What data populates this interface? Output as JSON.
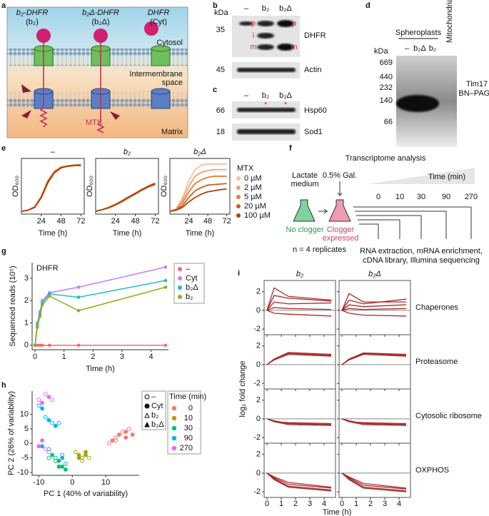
{
  "panel_a": {
    "label": "a",
    "constructs": [
      {
        "name": "b₂-DHFR",
        "short": "(b₂)"
      },
      {
        "name": "b₂Δ-DHFR",
        "short": "(b₂Δ)"
      },
      {
        "name": "DHFR",
        "short": "(Cyt)"
      }
    ],
    "cytosol": "Cytosol",
    "ims": [
      "Intermembrane",
      "space"
    ],
    "matrix": "Matrix",
    "mts": "MTS"
  },
  "panel_b": {
    "label": "b",
    "unit": "kDa",
    "lanes": [
      "–",
      "b₂",
      "b₂Δ"
    ],
    "blots": [
      {
        "marker": 35,
        "name": "DHFR"
      },
      {
        "marker": 45,
        "name": "Actin"
      }
    ],
    "band_labels": [
      "p",
      "i",
      "m",
      "p",
      "m"
    ]
  },
  "panel_c": {
    "label": "c",
    "lanes": [
      "–",
      "b₂",
      "b₂Δ"
    ],
    "blots": [
      {
        "marker": 66,
        "name": "Hsp60"
      },
      {
        "marker": 18,
        "name": "Sod1"
      }
    ]
  },
  "panel_d": {
    "label": "d",
    "group": "Spheroplasts",
    "lanes": [
      "–",
      "b₂Δ",
      "b₂",
      "Mitochondria"
    ],
    "unit": "kDa",
    "markers": [
      669,
      440,
      232,
      140,
      66
    ],
    "caption": [
      "Tim17",
      "BN–PAGE"
    ]
  },
  "panel_e": {
    "label": "e"
  },
  "panel_f": {
    "label": "f",
    "title": "Transcriptome analysis",
    "medium": [
      "Lactate",
      "medium"
    ],
    "inducer": "0.5% Gal.",
    "time_title": "Time (min)",
    "timepoints": [
      0,
      10,
      30,
      90,
      270
    ],
    "flasks": [
      "No clogger",
      [
        "Clogger",
        "expressed"
      ]
    ],
    "replicates": "n = 4 replicates",
    "steps": [
      "RNA extraction, mRNA enrichment,",
      "cDNA library, Illumina sequencing"
    ]
  },
  "panel_g": {
    "label": "g"
  },
  "panel_h": {
    "label": "h"
  },
  "panel_i": {
    "label": "i"
  },
  "chart_data": [
    {
      "type": "line",
      "title": "–",
      "x_label": "Time (h)",
      "y_label": "OD₆₀₀",
      "xlim": [
        0,
        76
      ],
      "xticks": [
        24,
        48,
        72
      ],
      "ylim": [
        0,
        1
      ],
      "x": [
        0,
        8,
        16,
        24,
        32,
        40,
        48,
        56,
        64,
        72
      ],
      "series": [
        {
          "color": "#f4c3a0",
          "values": [
            0.05,
            0.07,
            0.12,
            0.3,
            0.58,
            0.76,
            0.84,
            0.87,
            0.88,
            0.88
          ]
        },
        {
          "color": "#eea16e",
          "values": [
            0.05,
            0.07,
            0.13,
            0.32,
            0.6,
            0.77,
            0.85,
            0.87,
            0.88,
            0.89
          ]
        },
        {
          "color": "#e27f3f",
          "values": [
            0.05,
            0.07,
            0.12,
            0.29,
            0.56,
            0.74,
            0.83,
            0.86,
            0.87,
            0.88
          ]
        },
        {
          "color": "#c8601f",
          "values": [
            0.05,
            0.07,
            0.13,
            0.31,
            0.59,
            0.76,
            0.84,
            0.86,
            0.87,
            0.87
          ]
        },
        {
          "color": "#a84510",
          "values": [
            0.05,
            0.07,
            0.12,
            0.3,
            0.57,
            0.75,
            0.83,
            0.86,
            0.88,
            0.88
          ]
        }
      ]
    },
    {
      "type": "line",
      "title": "b₂",
      "x_label": "Time (h)",
      "y_label": "OD₆₀₀",
      "xlim": [
        0,
        76
      ],
      "xticks": [
        24,
        48,
        72
      ],
      "ylim": [
        0,
        1
      ],
      "x": [
        0,
        8,
        16,
        24,
        32,
        40,
        48,
        56,
        64,
        72
      ],
      "series": [
        {
          "color": "#f4c3a0",
          "values": [
            0.05,
            0.08,
            0.12,
            0.17,
            0.23,
            0.3,
            0.37,
            0.44,
            0.5,
            0.55
          ]
        },
        {
          "color": "#eea16e",
          "values": [
            0.05,
            0.08,
            0.12,
            0.18,
            0.24,
            0.31,
            0.38,
            0.45,
            0.51,
            0.56
          ]
        },
        {
          "color": "#e27f3f",
          "values": [
            0.05,
            0.08,
            0.11,
            0.16,
            0.22,
            0.29,
            0.36,
            0.43,
            0.49,
            0.54
          ]
        },
        {
          "color": "#c8601f",
          "values": [
            0.05,
            0.08,
            0.12,
            0.17,
            0.23,
            0.3,
            0.36,
            0.43,
            0.49,
            0.53
          ]
        },
        {
          "color": "#a84510",
          "values": [
            0.05,
            0.08,
            0.12,
            0.17,
            0.24,
            0.31,
            0.37,
            0.44,
            0.5,
            0.55
          ]
        }
      ]
    },
    {
      "type": "line",
      "title": "b₂Δ",
      "x_label": "Time (h)",
      "y_label": "OD₆₀₀",
      "xlim": [
        0,
        76
      ],
      "xticks": [
        24,
        48,
        72
      ],
      "ylim": [
        0,
        1
      ],
      "legend_title": "MTX",
      "x": [
        0,
        8,
        16,
        24,
        32,
        40,
        48,
        56,
        64,
        72
      ],
      "series": [
        {
          "name": "0 µM",
          "color": "#f4c3a0",
          "values": [
            0.05,
            0.1,
            0.3,
            0.6,
            0.8,
            0.88,
            0.9,
            0.9,
            0.9,
            0.9
          ]
        },
        {
          "name": "2 µM",
          "color": "#eea16e",
          "values": [
            0.05,
            0.09,
            0.25,
            0.5,
            0.68,
            0.75,
            0.78,
            0.8,
            0.8,
            0.8
          ]
        },
        {
          "name": "5 µM",
          "color": "#e27f3f",
          "values": [
            0.05,
            0.08,
            0.2,
            0.4,
            0.55,
            0.62,
            0.66,
            0.68,
            0.68,
            0.68
          ]
        },
        {
          "name": "20 µM",
          "color": "#c8601f",
          "values": [
            0.05,
            0.07,
            0.15,
            0.3,
            0.42,
            0.48,
            0.52,
            0.53,
            0.54,
            0.55
          ]
        },
        {
          "name": "100 µM",
          "color": "#a84510",
          "values": [
            0.05,
            0.07,
            0.12,
            0.22,
            0.3,
            0.36,
            0.4,
            0.42,
            0.44,
            0.45
          ]
        }
      ]
    },
    {
      "type": "line",
      "title": "DHFR",
      "x_label": "Time (h)",
      "y_label": "Sequenced reads (10⁵)",
      "xlim": [
        -0.1,
        4.6
      ],
      "xticks": [
        0,
        1,
        2,
        3,
        4
      ],
      "ylim": [
        -0.2,
        3.7
      ],
      "yticks": [
        0,
        1,
        2,
        3
      ],
      "x": [
        0,
        0.08,
        0.17,
        0.25,
        0.5,
        1.5,
        4.5
      ],
      "series": [
        {
          "name": "–",
          "color": "#f26b6b",
          "values": [
            0,
            0,
            0,
            0,
            0,
            0,
            0
          ]
        },
        {
          "name": "Cyt",
          "color": "#c77cff",
          "values": [
            0,
            1.0,
            1.5,
            2.0,
            2.35,
            2.6,
            3.5
          ]
        },
        {
          "name": "b₂Δ",
          "color": "#1fbfbf",
          "values": [
            0,
            0.9,
            1.4,
            1.9,
            2.3,
            2.15,
            2.9
          ]
        },
        {
          "name": "b₂",
          "color": "#8fae1b",
          "values": [
            0,
            0.8,
            1.3,
            1.8,
            2.2,
            1.55,
            2.6
          ]
        }
      ]
    },
    {
      "type": "scatter",
      "x_label": "PC 1 (40% of variability)",
      "y_label": "PC 2 (26% of variability)",
      "xlim": [
        -12,
        20
      ],
      "xticks": [
        -10,
        0,
        10
      ],
      "ylim": [
        -11,
        18
      ],
      "yticks": [
        -10,
        -5,
        0,
        5,
        10
      ],
      "shape_legend": [
        "–",
        "Cyt",
        "b₂",
        "b₂Δ"
      ],
      "legend_title": "Time (min)",
      "series": [
        {
          "name": "0",
          "color": "#f8766d",
          "x": [
            11,
            12,
            13,
            14,
            15,
            16,
            17,
            18,
            13,
            16
          ],
          "values": [
            0,
            1,
            2,
            3,
            4,
            2,
            5,
            3,
            1,
            4
          ]
        },
        {
          "name": "10",
          "color": "#a3a500",
          "x": [
            1,
            2,
            3,
            4,
            5,
            2,
            3,
            4
          ],
          "values": [
            -3,
            -4,
            -5,
            -4,
            -5,
            -5,
            -6,
            -3
          ]
        },
        {
          "name": "30",
          "color": "#00bf7d",
          "x": [
            -7,
            -6,
            -5,
            -4,
            -3,
            -3,
            -2,
            -2,
            -5,
            -4
          ],
          "values": [
            -5,
            -4,
            -5,
            -6,
            -4,
            -8,
            -7,
            -9,
            -6,
            -8
          ]
        },
        {
          "name": "90",
          "color": "#00b0f6",
          "x": [
            -10,
            -9,
            -8,
            -7,
            -6,
            -5,
            -4,
            -9,
            -7,
            -3
          ],
          "values": [
            13,
            12,
            9,
            8,
            7,
            6,
            7,
            -1,
            -2,
            -5
          ]
        },
        {
          "name": "270",
          "color": "#e76bf3",
          "x": [
            -10,
            -9,
            -8,
            -7,
            -6,
            -9,
            -8,
            -10,
            -7
          ],
          "values": [
            15,
            14,
            17,
            16,
            15,
            1,
            -2,
            -1,
            -3
          ]
        }
      ]
    },
    {
      "type": "small-multiples",
      "columns": [
        "b₂",
        "b₂Δ"
      ],
      "rows": [
        "Chaperones",
        "Proteasome",
        "Cytosolic ribosome",
        "OXPHOS"
      ],
      "x_label": "Time (h)",
      "y_label": "log₂ fold change",
      "xlim": [
        -0.2,
        4.8
      ],
      "xticks": [
        0,
        1,
        2,
        3,
        4
      ],
      "ylim": [
        -2.6,
        3.2
      ],
      "yticks": [
        -2,
        0,
        2
      ],
      "color": "#a52a2a",
      "x": [
        0,
        0.5,
        1.5,
        4.5
      ],
      "panels": [
        {
          "series": [
            {
              "values": [
                0,
                2.4,
                1.5,
                1.1
              ]
            },
            {
              "values": [
                0,
                1.6,
                1.3,
                1.0
              ]
            },
            {
              "values": [
                0,
                0.9,
                0.7,
                0.8
              ]
            },
            {
              "values": [
                0,
                0.3,
                0.2,
                0.1
              ]
            },
            {
              "values": [
                0,
                -0.3,
                -0.4,
                -0.6
              ]
            }
          ]
        },
        {
          "series": [
            {
              "values": [
                0,
                1.8,
                0.9,
                0.9
              ]
            },
            {
              "values": [
                0,
                1.1,
                0.7,
                1.2
              ]
            },
            {
              "values": [
                0,
                0.6,
                0.4,
                0.6
              ]
            },
            {
              "values": [
                0,
                0.2,
                0.1,
                0.2
              ]
            },
            {
              "values": [
                0,
                -0.3,
                -0.5,
                -0.6
              ]
            }
          ]
        },
        {
          "series": [
            {
              "values": [
                0,
                0.6,
                1.3,
                1.1
              ]
            },
            {
              "values": [
                0,
                0.6,
                1.2,
                1.0
              ]
            },
            {
              "values": [
                0,
                0.5,
                1.1,
                0.9
              ]
            }
          ]
        },
        {
          "series": [
            {
              "values": [
                0,
                0.6,
                1.25,
                1.1
              ]
            },
            {
              "values": [
                0,
                0.55,
                1.2,
                1.0
              ]
            },
            {
              "values": [
                0,
                0.5,
                1.1,
                0.9
              ]
            }
          ]
        },
        {
          "series": [
            {
              "values": [
                0,
                -0.3,
                -0.4,
                -0.5
              ]
            },
            {
              "values": [
                0,
                -0.2,
                -0.5,
                -0.6
              ]
            },
            {
              "values": [
                0,
                -0.3,
                -0.6,
                -0.7
              ]
            }
          ]
        },
        {
          "series": [
            {
              "values": [
                0,
                -0.3,
                -0.4,
                -0.5
              ]
            },
            {
              "values": [
                0,
                -0.2,
                -0.5,
                -0.6
              ]
            },
            {
              "values": [
                0,
                -0.3,
                -0.6,
                -0.7
              ]
            }
          ]
        },
        {
          "series": [
            {
              "values": [
                0,
                -0.5,
                -1.2,
                -1.6
              ]
            },
            {
              "values": [
                0,
                -0.6,
                -1.4,
                -1.8
              ]
            },
            {
              "values": [
                0,
                -0.4,
                -1.0,
                -1.5
              ]
            },
            {
              "values": [
                0,
                -0.7,
                -1.5,
                -1.9
              ]
            }
          ]
        },
        {
          "series": [
            {
              "values": [
                0,
                -0.5,
                -1.3,
                -1.7
              ]
            },
            {
              "values": [
                0,
                -0.6,
                -1.5,
                -1.9
              ]
            },
            {
              "values": [
                0,
                -0.4,
                -1.1,
                -1.6
              ]
            },
            {
              "values": [
                0,
                -0.7,
                -1.6,
                -2.0
              ]
            }
          ]
        }
      ]
    }
  ]
}
